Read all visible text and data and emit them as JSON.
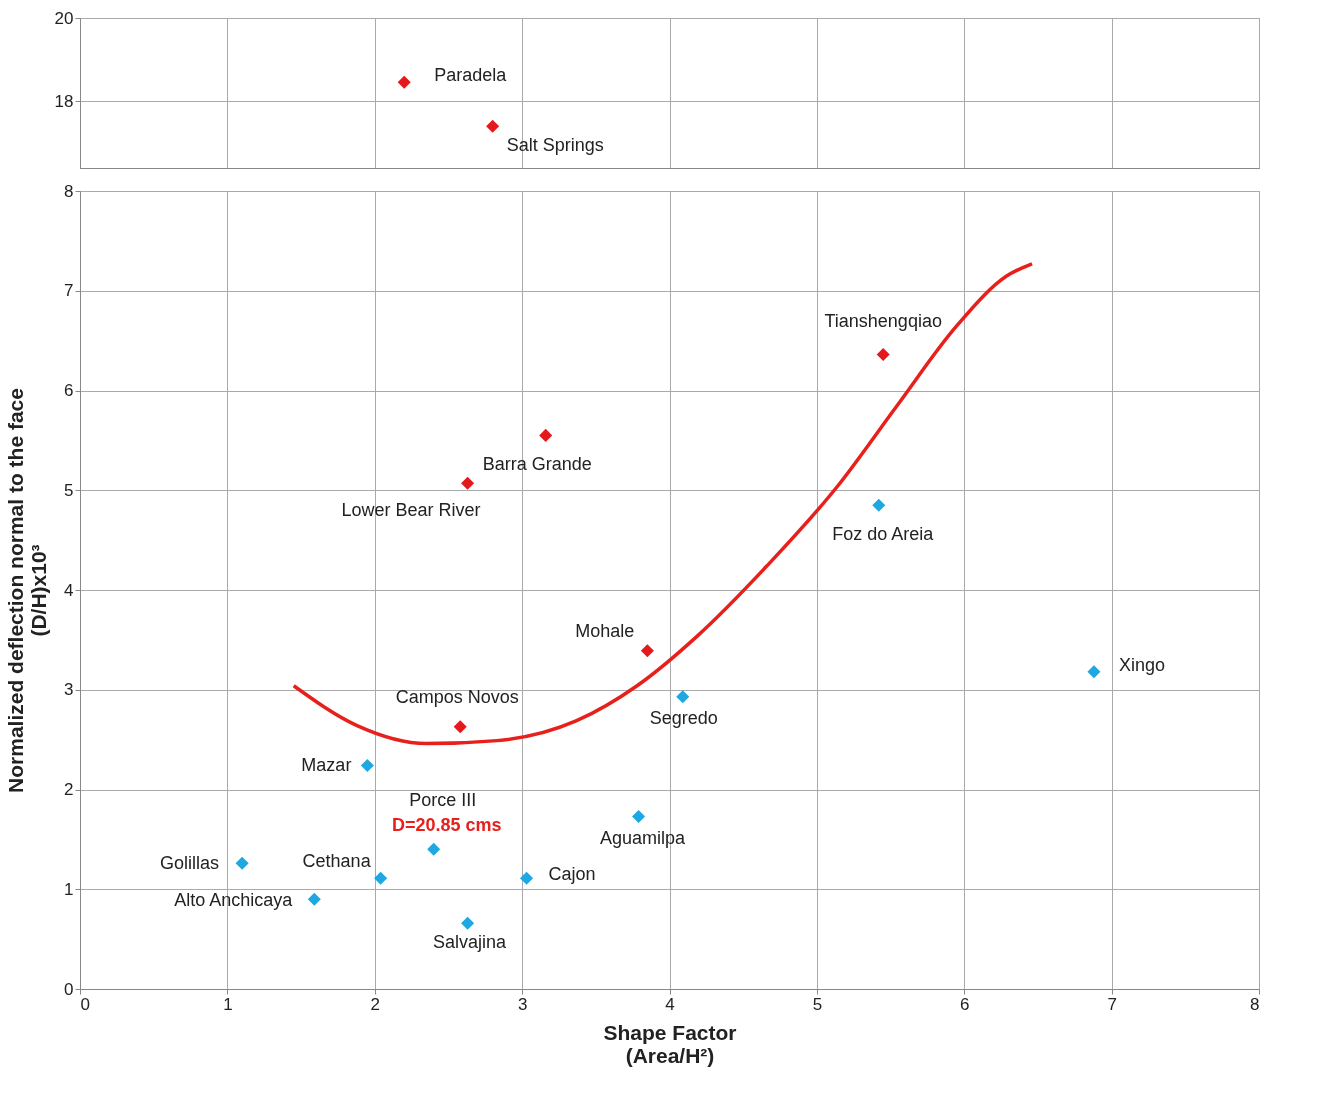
{
  "chart_data": [
    {
      "type": "scatter",
      "xlim": [
        0,
        8
      ],
      "xticks": [
        0,
        1,
        2,
        3,
        4,
        5,
        6,
        7,
        8
      ],
      "ylim": [
        16.4,
        20
      ],
      "yticks": [
        18,
        20
      ],
      "grid": true,
      "marker": "diamond",
      "tick_labels": "y",
      "series": [
        {
          "color": "#e31a1c",
          "x": [
            2.2,
            2.8
          ],
          "values": [
            18.46,
            17.4
          ]
        }
      ],
      "annotations": [
        {
          "text": "Paradela",
          "x": 2.2,
          "y": 18.46
        },
        {
          "text": "Salt Springs",
          "x": 2.8,
          "y": 17.4
        }
      ]
    },
    {
      "type": "scatter",
      "xlim": [
        0,
        8
      ],
      "xticks": [
        0,
        1,
        2,
        3,
        4,
        5,
        6,
        7,
        8
      ],
      "ylim": [
        0,
        8
      ],
      "yticks": [
        0,
        1,
        2,
        3,
        4,
        5,
        6,
        7,
        8
      ],
      "grid": true,
      "marker": "diamond",
      "xlabel": "Shape Factor\n(Area/H²)",
      "ylabel": "Normalized deflection normal to the face\n(D/H)x10³",
      "series": [
        {
          "type": "line",
          "marker": "none",
          "color": "#e8201c",
          "x": [
            1.45,
            1.88,
            2.35,
            2.83,
            3.37,
            3.78,
            4.19,
            4.66,
            5.14,
            5.54,
            5.95,
            6.29,
            6.46
          ],
          "values": [
            3.04,
            2.64,
            2.46,
            2.49,
            2.69,
            3.04,
            3.54,
            4.24,
            5.04,
            5.84,
            6.65,
            7.15,
            7.27
          ]
        },
        {
          "color": "#e31a1c",
          "x": [
            5.45,
            3.16,
            2.63,
            3.85,
            2.58
          ],
          "values": [
            6.36,
            5.55,
            5.07,
            3.39,
            2.63
          ]
        },
        {
          "color": "#1ea7e1",
          "x": [
            5.42,
            6.88,
            4.09,
            1.95,
            3.79,
            1.1,
            2.4,
            2.04,
            3.03,
            1.59,
            2.63
          ],
          "values": [
            4.85,
            3.18,
            2.93,
            2.24,
            1.73,
            1.26,
            1.4,
            1.11,
            1.11,
            0.9,
            0.66
          ]
        }
      ],
      "annotations": [
        {
          "text": "Tianshengqiao",
          "x": 5.45,
          "y": 6.36
        },
        {
          "text": "Barra Grande",
          "x": 3.16,
          "y": 5.55
        },
        {
          "text": "Lower Bear River",
          "x": 2.63,
          "y": 5.07
        },
        {
          "text": "Mohale",
          "x": 3.85,
          "y": 3.39
        },
        {
          "text": "Campos Novos",
          "x": 2.58,
          "y": 2.63
        },
        {
          "text": "Foz do Areia",
          "x": 5.42,
          "y": 4.85
        },
        {
          "text": "Xingo",
          "x": 6.88,
          "y": 3.18
        },
        {
          "text": "Segredo",
          "x": 4.09,
          "y": 2.93
        },
        {
          "text": "Mazar",
          "x": 1.95,
          "y": 2.24
        },
        {
          "text": "Aguamilpa",
          "x": 3.79,
          "y": 1.73
        },
        {
          "text": "Golillas",
          "x": 1.1,
          "y": 1.26
        },
        {
          "text": "Porce III",
          "x": 2.4,
          "y": 1.4
        },
        {
          "text": "Cethana",
          "x": 2.04,
          "y": 1.11
        },
        {
          "text": "Cajon",
          "x": 3.03,
          "y": 1.11
        },
        {
          "text": "Alto Anchicaya",
          "x": 1.59,
          "y": 0.9
        },
        {
          "text": "Salvajina",
          "x": 2.63,
          "y": 0.66
        },
        {
          "text": "D=20.85  cms",
          "x": 2.4,
          "y": 1.4
        }
      ]
    }
  ]
}
